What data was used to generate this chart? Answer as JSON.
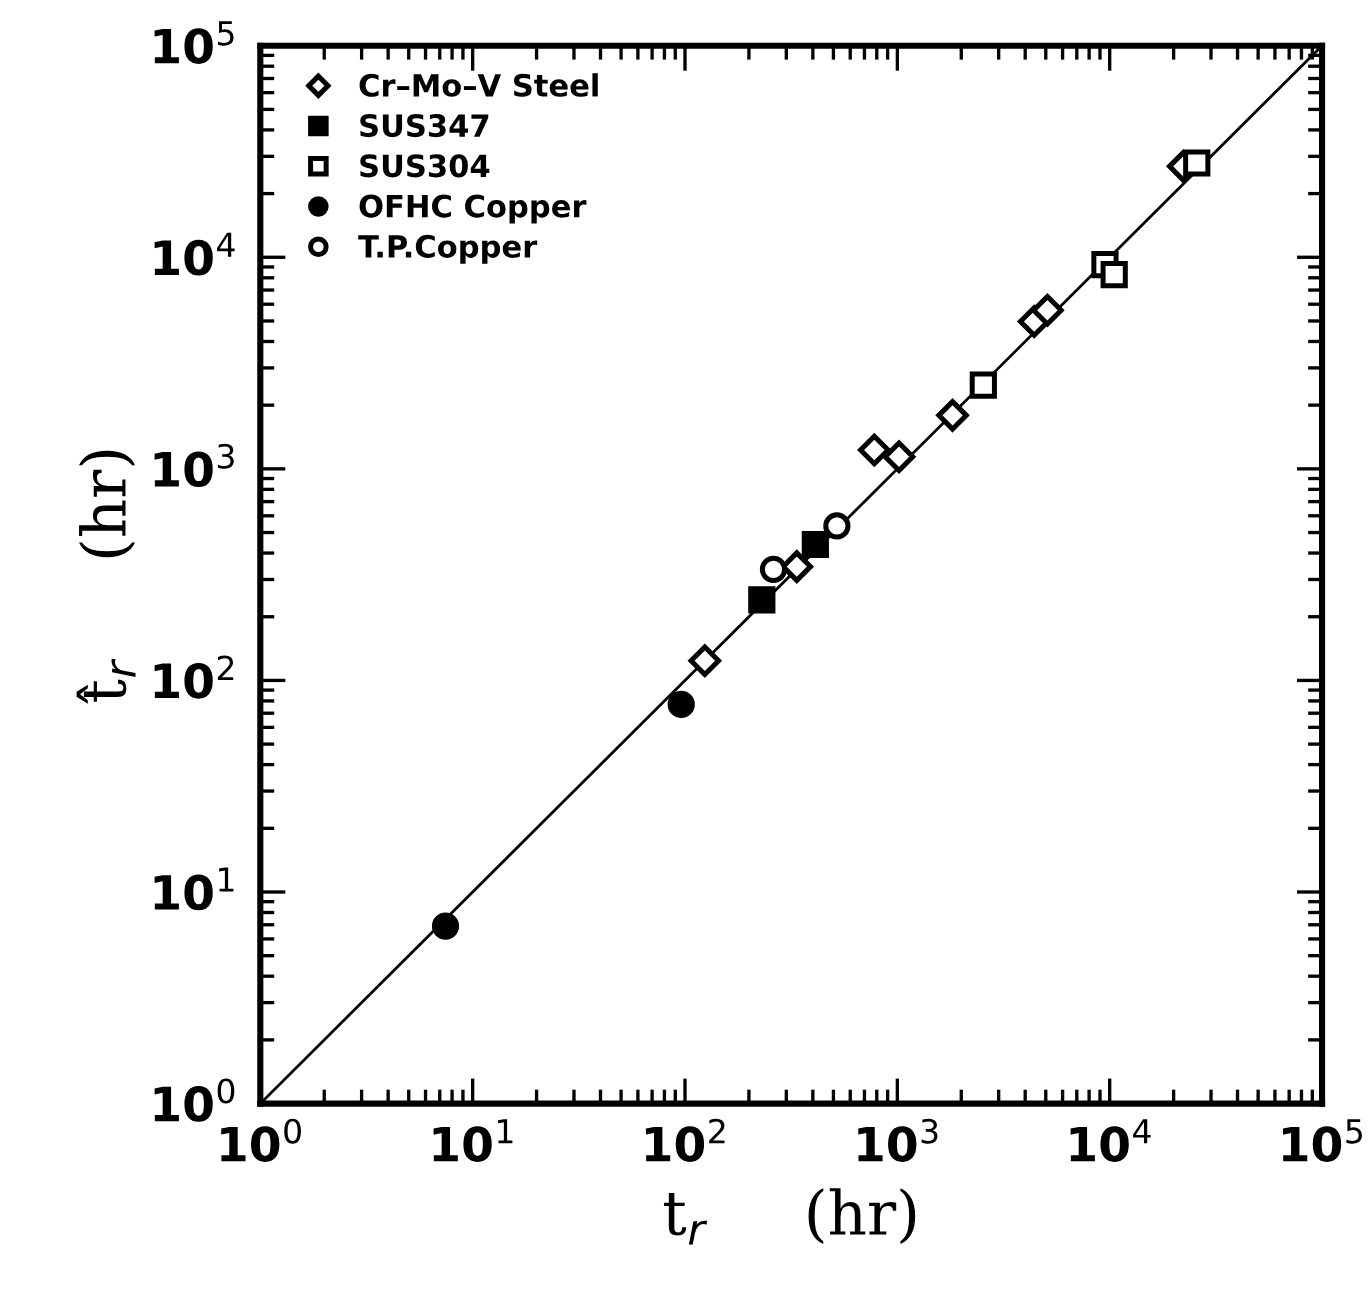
{
  "chart_data": {
    "type": "scatter",
    "xlabel": "t$_{r}$     (hr)",
    "ylabel": "t̂$_{r}$     (hr)",
    "log": "xy",
    "grid": false,
    "legend": "top left",
    "xlim": [
      1,
      100000
    ],
    "ylim": [
      1,
      100000
    ],
    "xticks": [
      {
        "value": 1,
        "label": "10$^{0}$"
      },
      {
        "value": 10,
        "label": "10$^{1}$"
      },
      {
        "value": 100,
        "label": "10$^{2}$"
      },
      {
        "value": 1000,
        "label": "10$^{3}$"
      },
      {
        "value": 10000,
        "label": "10$^{4}$"
      },
      {
        "value": 100000,
        "label": "10$^{5}$"
      }
    ],
    "yticks": [
      {
        "value": 1,
        "label": "10$^{0}$"
      },
      {
        "value": 10,
        "label": "10$^{1}$"
      },
      {
        "value": 100,
        "label": "10$^{2}$"
      },
      {
        "value": 1000,
        "label": "10$^{3}$"
      },
      {
        "value": 10000,
        "label": "10$^{4}$"
      },
      {
        "value": 100000,
        "label": "10$^{5}$"
      }
    ],
    "series": [
      {
        "type": "line",
        "color": "#000000",
        "marker": "none",
        "line_style": "solid",
        "x": [
          1,
          100000
        ],
        "values": [
          1,
          100000
        ]
      },
      {
        "name": "Cr–Mo–V Steel",
        "color": "#000000",
        "marker": "diamond-open",
        "x": [
          124,
          336,
          779,
          1018,
          1820,
          4410,
          5090,
          22200
        ],
        "values": [
          124,
          345,
          1227,
          1140,
          1790,
          4970,
          5620,
          26900
        ]
      },
      {
        "name": "SUS347",
        "color": "#000000",
        "marker": "square",
        "x": [
          230,
          411
        ],
        "values": [
          240,
          439
        ]
      },
      {
        "name": "SUS304",
        "color": "#000000",
        "marker": "square-open",
        "x": [
          2540,
          9500,
          10500,
          25700
        ],
        "values": [
          2490,
          9230,
          8280,
          27900
        ]
      },
      {
        "name": "OFHC Copper",
        "color": "#000000",
        "marker": "circle",
        "x": [
          7.45,
          96
        ],
        "values": [
          6.9,
          77
        ]
      },
      {
        "name": "T.P.Copper",
        "color": "#000000",
        "marker": "circle-open",
        "x": [
          261,
          519
        ],
        "values": [
          335,
          537
        ]
      }
    ]
  }
}
